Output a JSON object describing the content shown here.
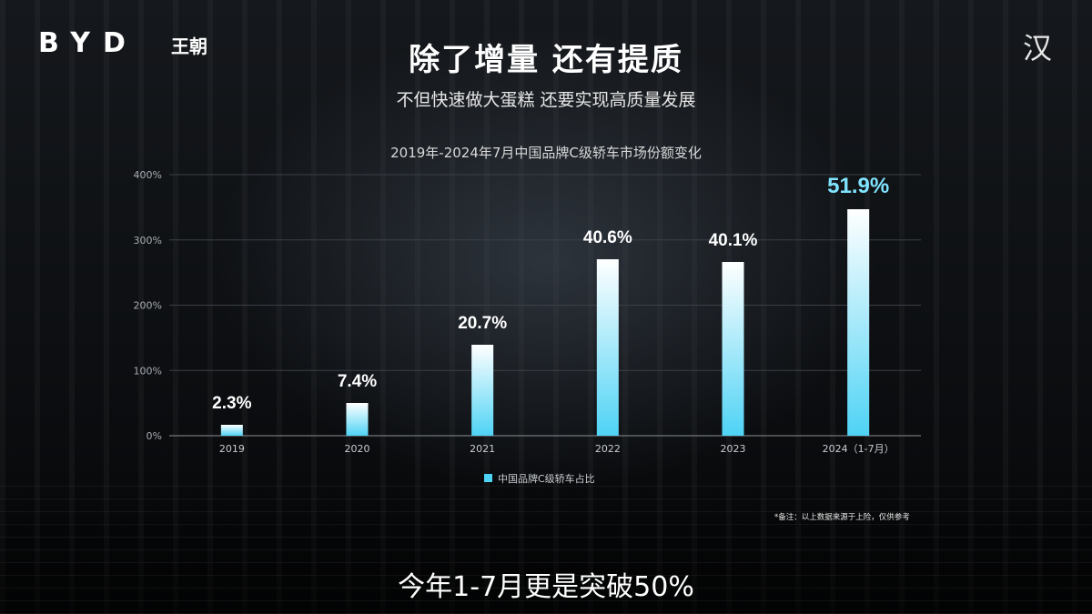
{
  "brand": {
    "logo_text": "BYD",
    "series_text": "王朝",
    "model_mark": "汉"
  },
  "header": {
    "title": "除了增量  还有提质",
    "subtitle": "不但快速做大蛋糕  还要实现高质量发展"
  },
  "chart_data": {
    "type": "bar",
    "title": "2019年-2024年7月中国品牌C级轿车市场份额变化",
    "categories": [
      "2019",
      "2020",
      "2021",
      "2022",
      "2023",
      "2024（1-7月）"
    ],
    "series": [
      {
        "name": "中国品牌C级轿车占比",
        "values": [
          2.3,
          7.4,
          20.7,
          40.6,
          40.1,
          51.9
        ]
      }
    ],
    "data_labels": [
      "2.3%",
      "7.4%",
      "20.7%",
      "40.6%",
      "40.1%",
      "51.9%"
    ],
    "yticks": [
      "0%",
      "100%",
      "200%",
      "300%",
      "400%"
    ],
    "ylim": [
      0,
      400
    ],
    "grid": true,
    "legend": "bottom",
    "colors": {
      "bar_top": "#ffffff",
      "bar_bottom": "#4fd3f5",
      "highlight_label": "#7fe3ff"
    }
  },
  "footnote": "*备注：以上数据来源于上险，仅供参考",
  "caption": "今年1-7月更是突破50%"
}
